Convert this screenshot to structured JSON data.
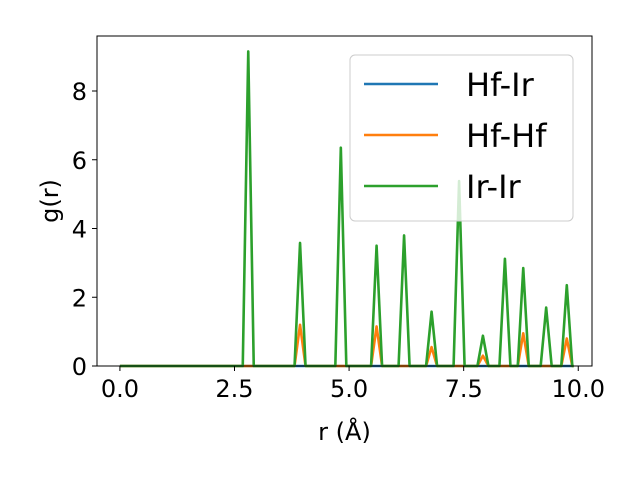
{
  "chart_data": {
    "type": "line",
    "xlabel": "r (Å)",
    "ylabel": "g(r)",
    "xlim": [
      -0.5,
      10.3
    ],
    "ylim": [
      0,
      9.6
    ],
    "xticks": [
      0.0,
      2.5,
      5.0,
      7.5,
      10.0
    ],
    "xtick_labels": [
      "0.0",
      "2.5",
      "5.0",
      "7.5",
      "10.0"
    ],
    "yticks": [
      0,
      2,
      4,
      6,
      8
    ],
    "ytick_labels": [
      "0",
      "2",
      "4",
      "6",
      "8"
    ],
    "grid": false,
    "legend_position": "upper-right",
    "peak_half_width": 0.12,
    "series": [
      {
        "name": "Hf-Ir",
        "color": "#1f77b4",
        "peaks": []
      },
      {
        "name": "Hf-Hf",
        "color": "#ff7f0e",
        "peaks": [
          {
            "r": 3.93,
            "g": 1.2
          },
          {
            "r": 5.6,
            "g": 1.15
          },
          {
            "r": 6.8,
            "g": 0.55
          },
          {
            "r": 7.92,
            "g": 0.3
          },
          {
            "r": 8.8,
            "g": 0.95
          },
          {
            "r": 9.75,
            "g": 0.8
          }
        ]
      },
      {
        "name": "Ir-Ir",
        "color": "#2ca02c",
        "peaks": [
          {
            "r": 2.8,
            "g": 9.15
          },
          {
            "r": 3.93,
            "g": 3.58
          },
          {
            "r": 4.82,
            "g": 6.35
          },
          {
            "r": 5.6,
            "g": 3.5
          },
          {
            "r": 6.2,
            "g": 3.8
          },
          {
            "r": 6.8,
            "g": 1.58
          },
          {
            "r": 7.4,
            "g": 5.38
          },
          {
            "r": 7.92,
            "g": 0.88
          },
          {
            "r": 8.4,
            "g": 3.12
          },
          {
            "r": 8.8,
            "g": 2.85
          },
          {
            "r": 9.3,
            "g": 1.7
          },
          {
            "r": 9.75,
            "g": 2.35
          }
        ]
      }
    ]
  }
}
